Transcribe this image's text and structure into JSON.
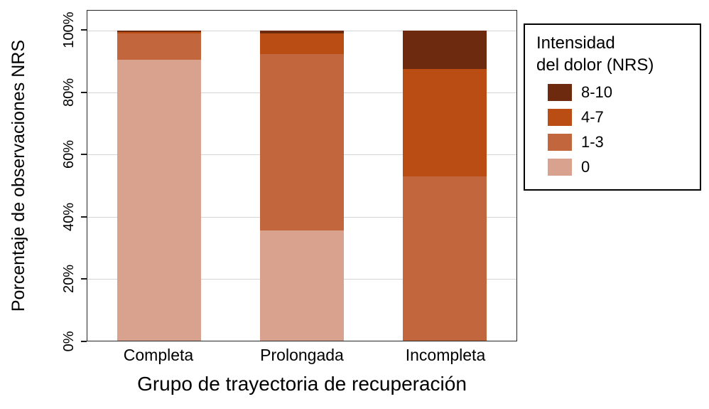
{
  "figure": {
    "y_axis_title": "Porcentaje de observaciones NRS",
    "x_axis_title": "Grupo de trayectoria de recuperación"
  },
  "legend": {
    "title": "Intensidad\ndel dolor (NRS)"
  },
  "chart_data": {
    "type": "bar",
    "subtype": "stacked-100-percent",
    "title": "",
    "xlabel": "Grupo de trayectoria de recuperación",
    "ylabel": "Porcentaje de observaciones NRS",
    "categories": [
      "Completa",
      "Prolongada",
      "Incompleta"
    ],
    "series": [
      {
        "name": "8-10",
        "color": "#6d2a0f",
        "values": [
          0.5,
          1.0,
          12.5
        ]
      },
      {
        "name": "4-7",
        "color": "#b94d13",
        "values": [
          0.5,
          6.5,
          34.5
        ]
      },
      {
        "name": "1-3",
        "color": "#c2663e",
        "values": [
          8.5,
          57.0,
          53.0
        ]
      },
      {
        "name": "0",
        "color": "#d9a28e",
        "values": [
          90.5,
          35.5,
          0.0
        ]
      }
    ],
    "stack_note": "series listed top-to-bottom of each bar; values are percent of observations",
    "yticks": [
      "0%",
      "20%",
      "40%",
      "60%",
      "80%",
      "100%"
    ],
    "ylim": [
      0,
      100
    ],
    "grid": true,
    "legend_position": "right"
  }
}
